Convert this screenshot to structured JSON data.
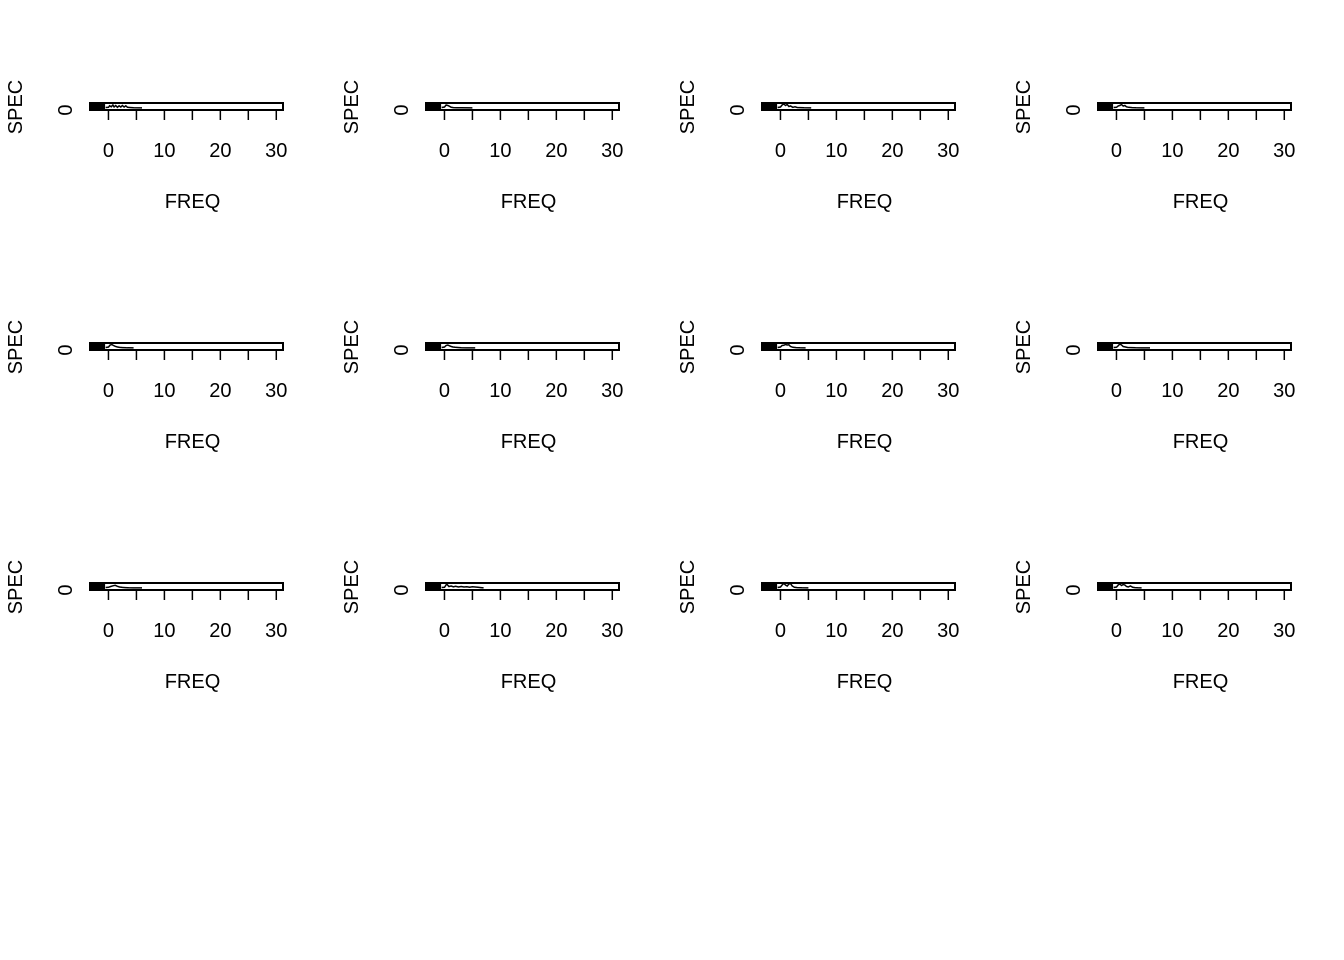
{
  "chart_data": {
    "type": "line",
    "layout": "3x4 grid of small multiples",
    "panels": [
      {
        "xlabel": "FREQ",
        "ylabel": "SPEC",
        "xlim": [
          -3.3,
          31.2
        ],
        "x_ticks": [
          0,
          10,
          20,
          30
        ],
        "y_ticks": [
          0
        ],
        "series": [
          {
            "x": [
              -0.5,
              0,
              0.2,
              0.5,
              0.8,
              1.0,
              1.3,
              1.6,
              1.9,
              2.2,
              2.5,
              2.8,
              3.1,
              3.4,
              3.8,
              4.5,
              6
            ],
            "y": [
              0.1,
              0.15,
              0.45,
              0.25,
              0.6,
              0.2,
              0.5,
              0.15,
              0.45,
              0.2,
              0.5,
              0.2,
              0.45,
              0.15,
              0.1,
              0.05,
              0.02
            ]
          }
        ]
      },
      {
        "xlabel": "FREQ",
        "ylabel": "SPEC",
        "xlim": [
          -3.3,
          31.2
        ],
        "x_ticks": [
          0,
          10,
          20,
          30
        ],
        "y_ticks": [
          0
        ],
        "series": [
          {
            "x": [
              -0.5,
              0,
              0.3,
              0.6,
              0.9,
              1.2,
              1.6,
              2.2,
              3,
              5
            ],
            "y": [
              0.1,
              0.2,
              0.6,
              0.5,
              0.35,
              0.15,
              0.08,
              0.05,
              0.03,
              0.02
            ]
          }
        ]
      },
      {
        "xlabel": "FREQ",
        "ylabel": "SPEC",
        "xlim": [
          -3.3,
          31.2
        ],
        "x_ticks": [
          0,
          10,
          20,
          30
        ],
        "y_ticks": [
          0
        ],
        "series": [
          {
            "x": [
              -0.5,
              0,
              0.3,
              0.6,
              0.9,
              1.2,
              1.5,
              1.8,
              2.2,
              2.6,
              3.0,
              3.5,
              4.2,
              5.5
            ],
            "y": [
              0.1,
              0.2,
              0.6,
              0.8,
              0.5,
              0.7,
              0.3,
              0.4,
              0.15,
              0.25,
              0.1,
              0.08,
              0.04,
              0.02
            ]
          }
        ]
      },
      {
        "xlabel": "FREQ",
        "ylabel": "SPEC",
        "xlim": [
          -3.3,
          31.2
        ],
        "x_ticks": [
          0,
          10,
          20,
          30
        ],
        "y_ticks": [
          0
        ],
        "series": [
          {
            "x": [
              -0.5,
              0,
              0.3,
              0.6,
              0.9,
              1.2,
              1.5,
              1.8,
              2.2,
              2.8,
              3.5,
              5
            ],
            "y": [
              0.1,
              0.15,
              0.4,
              0.5,
              0.7,
              0.4,
              0.5,
              0.25,
              0.15,
              0.08,
              0.04,
              0.02
            ]
          }
        ]
      },
      {
        "xlabel": "FREQ",
        "ylabel": "SPEC",
        "xlim": [
          -3.3,
          31.2
        ],
        "x_ticks": [
          0,
          10,
          20,
          30
        ],
        "y_ticks": [
          0
        ],
        "series": [
          {
            "x": [
              -0.5,
              0,
              0.3,
              0.6,
              0.9,
              1.2,
              1.6,
              2.0,
              2.5,
              3.2,
              4.5
            ],
            "y": [
              0.1,
              0.2,
              0.6,
              0.7,
              0.5,
              0.35,
              0.2,
              0.12,
              0.08,
              0.04,
              0.02
            ]
          }
        ]
      },
      {
        "xlabel": "FREQ",
        "ylabel": "SPEC",
        "xlim": [
          -3.3,
          31.2
        ],
        "x_ticks": [
          0,
          10,
          20,
          30
        ],
        "y_ticks": [
          0
        ],
        "series": [
          {
            "x": [
              -0.5,
              0,
              0.3,
              0.6,
              0.9,
              1.2,
              1.5,
              1.9,
              2.4,
              3.0,
              4.0,
              5.5
            ],
            "y": [
              0.1,
              0.2,
              0.5,
              0.6,
              0.45,
              0.3,
              0.2,
              0.15,
              0.1,
              0.06,
              0.03,
              0.02
            ]
          }
        ]
      },
      {
        "xlabel": "FREQ",
        "ylabel": "SPEC",
        "xlim": [
          -3.3,
          31.2
        ],
        "x_ticks": [
          0,
          10,
          20,
          30
        ],
        "y_ticks": [
          0
        ],
        "series": [
          {
            "x": [
              -0.5,
              0,
              0.3,
              0.6,
              0.9,
              1.2,
              1.5,
              1.8,
              2.2,
              2.8,
              3.5,
              4.5
            ],
            "y": [
              0.1,
              0.2,
              0.5,
              0.55,
              0.7,
              0.6,
              0.65,
              0.3,
              0.15,
              0.08,
              0.04,
              0.02
            ]
          }
        ]
      },
      {
        "xlabel": "FREQ",
        "ylabel": "SPEC",
        "xlim": [
          -3.3,
          31.2
        ],
        "x_ticks": [
          0,
          10,
          20,
          30
        ],
        "y_ticks": [
          0
        ],
        "series": [
          {
            "x": [
              -0.5,
              0,
              0.3,
              0.6,
              0.9,
              1.2,
              1.6,
              2.0,
              2.6,
              3.4,
              4.5,
              6
            ],
            "y": [
              0.1,
              0.15,
              0.4,
              0.8,
              0.6,
              0.3,
              0.2,
              0.1,
              0.08,
              0.05,
              0.03,
              0.02
            ]
          }
        ]
      },
      {
        "xlabel": "FREQ",
        "ylabel": "SPEC",
        "xlim": [
          -3.3,
          31.2
        ],
        "x_ticks": [
          0,
          10,
          20,
          30
        ],
        "y_ticks": [
          0
        ],
        "series": [
          {
            "x": [
              -0.5,
              0,
              0.4,
              0.8,
              1.2,
              1.6,
              2.0,
              2.5,
              3.0,
              3.6,
              4.5,
              6
            ],
            "y": [
              0.1,
              0.15,
              0.3,
              0.45,
              0.55,
              0.35,
              0.2,
              0.12,
              0.08,
              0.05,
              0.03,
              0.02
            ]
          }
        ]
      },
      {
        "xlabel": "FREQ",
        "ylabel": "SPEC",
        "xlim": [
          -3.3,
          31.2
        ],
        "x_ticks": [
          0,
          10,
          20,
          30
        ],
        "y_ticks": [
          0
        ],
        "series": [
          {
            "x": [
              -0.5,
              0,
              0.4,
              0.8,
              1.2,
              1.6,
              2.0,
              2.5,
              3.0,
              3.5,
              4.0,
              4.5,
              5.0,
              5.5,
              6.0,
              6.5,
              7
            ],
            "y": [
              0.1,
              0.15,
              0.8,
              0.3,
              0.4,
              0.25,
              0.35,
              0.2,
              0.3,
              0.2,
              0.25,
              0.15,
              0.25,
              0.2,
              0.15,
              0.08,
              0.03
            ]
          }
        ]
      },
      {
        "xlabel": "FREQ",
        "ylabel": "SPEC",
        "xlim": [
          -3.3,
          31.2
        ],
        "x_ticks": [
          0,
          10,
          20,
          30
        ],
        "y_ticks": [
          0
        ],
        "series": [
          {
            "x": [
              -0.5,
              0,
              0.3,
              0.6,
              0.9,
              1.2,
              1.5,
              1.8,
              2.1,
              2.5,
              3.0,
              3.8,
              5
            ],
            "y": [
              0.1,
              0.2,
              0.6,
              0.9,
              0.6,
              0.4,
              0.8,
              0.9,
              0.4,
              0.15,
              0.08,
              0.04,
              0.02
            ]
          }
        ]
      },
      {
        "xlabel": "FREQ",
        "ylabel": "SPEC",
        "xlim": [
          -3.3,
          31.2
        ],
        "x_ticks": [
          0,
          10,
          20,
          30
        ],
        "y_ticks": [
          0
        ],
        "series": [
          {
            "x": [
              -0.5,
              0,
              0.3,
              0.6,
              0.9,
              1.2,
              1.5,
              1.8,
              2.1,
              2.5,
              2.9,
              3.3,
              3.8,
              4.5
            ],
            "y": [
              0.1,
              0.2,
              0.6,
              0.8,
              0.5,
              0.7,
              0.6,
              0.3,
              0.2,
              0.4,
              0.15,
              0.08,
              0.04,
              0.02
            ]
          }
        ]
      }
    ]
  }
}
